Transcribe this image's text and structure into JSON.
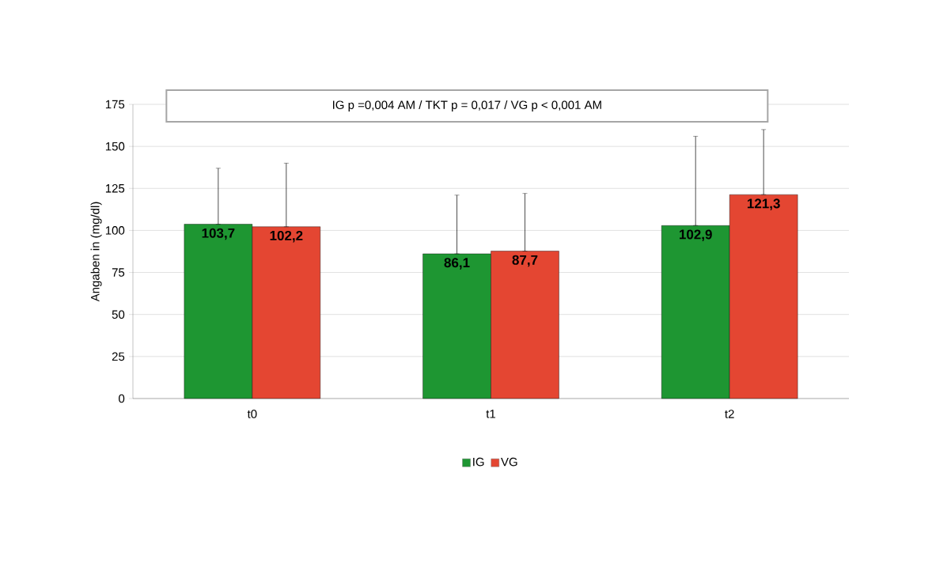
{
  "chart_data": {
    "type": "bar",
    "categories": [
      "t0",
      "t1",
      "t2"
    ],
    "ylabel": "Angaben in (mg/dl)",
    "annotations": [
      "IG p =0,004 AM / TKT p = 0,017 / VG p < 0,001 AM"
    ],
    "series": [
      {
        "name": "IG",
        "color": "#1e9632",
        "values": [
          103.7,
          86.1,
          102.9
        ],
        "value_labels": [
          "103,7",
          "86,1",
          "102,9"
        ],
        "errors": [
          [
            103.7,
            137
          ],
          [
            86.1,
            121
          ],
          [
            102.9,
            156
          ]
        ]
      },
      {
        "name": "VG",
        "color": "#e44632",
        "values": [
          102.2,
          87.7,
          121.3
        ],
        "value_labels": [
          "102,2",
          "87,7",
          "121,3"
        ],
        "errors": [
          [
            102.2,
            140
          ],
          [
            87.7,
            122
          ],
          [
            121.3,
            160
          ]
        ]
      }
    ],
    "ylim": [
      0,
      175
    ],
    "yticks": [
      0,
      25,
      50,
      75,
      100,
      125,
      150,
      175
    ],
    "grid": "y",
    "legend": "bottom"
  }
}
